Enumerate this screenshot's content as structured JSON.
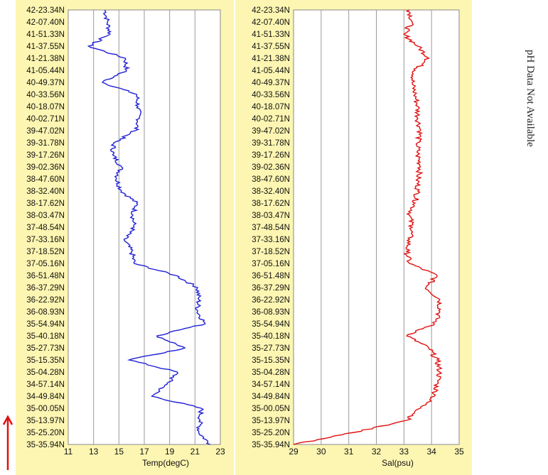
{
  "colors": {
    "panel_bg": "#fdf6b2",
    "plot_bg": "#ffffff",
    "grid": "#9a9a9a",
    "temp_line": "#1f1fd6",
    "sal_line": "#e01010",
    "arrow": "#e01010"
  },
  "ph_note": "pH Data Not Available",
  "chart_data": [
    {
      "type": "line",
      "orientation": "vertical",
      "xlabel": "Temp(degC)",
      "xlim": [
        11,
        23
      ],
      "xticks": [
        "11",
        "13",
        "15",
        "17",
        "19",
        "21",
        "23"
      ],
      "y_categories": [
        "42-23.34N",
        "42-07.40N",
        "41-51.33N",
        "41-37.55N",
        "41-21.38N",
        "41-05.44N",
        "40-49.37N",
        "40-33.56N",
        "40-18.07N",
        "40-02.71N",
        "39-47.02N",
        "39-31.78N",
        "39-17.26N",
        "39-02.36N",
        "38-47.60N",
        "38-32.40N",
        "38-17.62N",
        "38-03.47N",
        "37-48.54N",
        "37-33.16N",
        "37-18.52N",
        "37-05.16N",
        "36-51.48N",
        "36-37.29N",
        "36-22.92N",
        "36-08.93N",
        "35-54.94N",
        "35-40.18N",
        "35-27.73N",
        "35-15.35N",
        "35-04.28N",
        "34-57.14N",
        "34-49.84N",
        "35-00.05N",
        "35-13.97N",
        "35-25.20N",
        "35-35.94N"
      ],
      "series": [
        {
          "color": "#1f1fd6",
          "values": [
            13.9,
            14.1,
            14.3,
            12.6,
            15.5,
            15.6,
            13.7,
            16.4,
            16.5,
            16.6,
            16.3,
            14.6,
            14.5,
            15.2,
            14.8,
            15.2,
            16.4,
            16.1,
            16.2,
            15.4,
            16.0,
            16.2,
            19.5,
            21.2,
            21.3,
            21.2,
            21.8,
            18.0,
            20.2,
            15.8,
            19.6,
            18.8,
            17.6,
            21.5,
            21.4,
            21.3,
            22.2
          ]
        }
      ]
    },
    {
      "type": "line",
      "orientation": "vertical",
      "xlabel": "Sal(psu)",
      "xlim": [
        29,
        35
      ],
      "xticks": [
        "29",
        "30",
        "31",
        "32",
        "33",
        "34",
        "35"
      ],
      "y_categories": [
        "42-23.34N",
        "42-07.40N",
        "41-51.33N",
        "41-37.55N",
        "41-21.38N",
        "41-05.44N",
        "40-49.37N",
        "40-33.56N",
        "40-18.07N",
        "40-02.71N",
        "39-47.02N",
        "39-31.78N",
        "39-17.26N",
        "39-02.36N",
        "38-47.60N",
        "38-32.40N",
        "38-17.62N",
        "38-03.47N",
        "37-48.54N",
        "37-33.16N",
        "37-18.52N",
        "37-05.16N",
        "36-51.48N",
        "36-37.29N",
        "36-22.92N",
        "36-08.93N",
        "35-54.94N",
        "35-40.18N",
        "35-27.73N",
        "35-15.35N",
        "35-04.28N",
        "34-57.14N",
        "34-49.84N",
        "35-00.05N",
        "35-13.97N",
        "35-25.20N",
        "35-35.94N"
      ],
      "series": [
        {
          "color": "#e01010",
          "values": [
            33.2,
            33.3,
            33.0,
            33.5,
            33.9,
            33.4,
            33.3,
            33.4,
            33.5,
            33.5,
            33.6,
            33.5,
            33.5,
            33.6,
            33.5,
            33.5,
            33.4,
            33.2,
            33.3,
            33.2,
            33.1,
            33.2,
            34.2,
            33.8,
            34.3,
            34.3,
            34.1,
            33.1,
            33.9,
            34.2,
            34.3,
            34.2,
            34.1,
            33.6,
            33.1,
            31.2,
            29.0
          ]
        }
      ]
    }
  ]
}
